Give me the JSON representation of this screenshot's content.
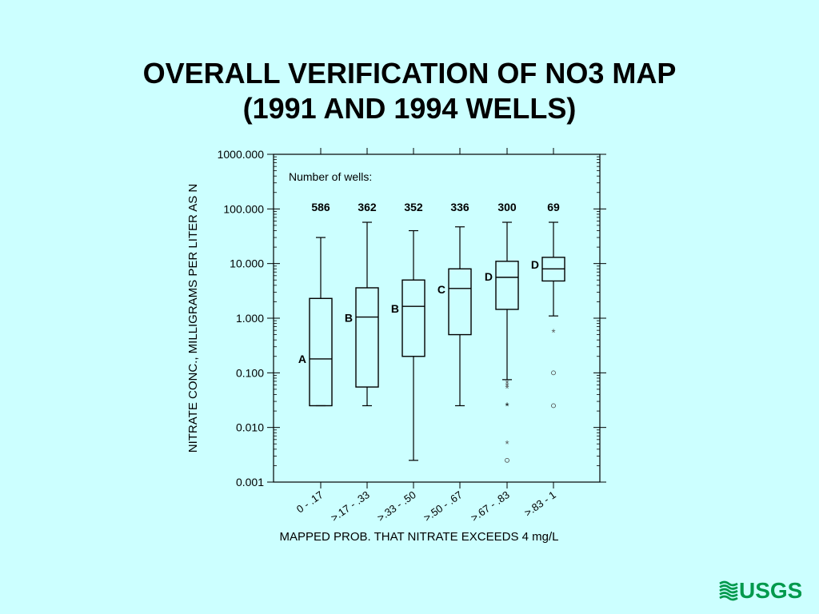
{
  "slide": {
    "title_line1": "OVERALL VERIFICATION OF NO3 MAP",
    "title_line2": "(1991 AND 1994 WELLS)",
    "logo_text": "USGS",
    "logo_color": "#00994c"
  },
  "chart_data": {
    "type": "box",
    "xlabel": "MAPPED PROB. THAT NITRATE EXCEEDS 4 mg/L",
    "ylabel": "NITRATE CONC., MILLIGRAMS PER LITER AS N",
    "yscale": "log",
    "ylim": [
      0.001,
      1000
    ],
    "yticks": [
      "0.001",
      "0.010",
      "0.100",
      "1.000",
      "10.000",
      "100.000",
      "1000.000"
    ],
    "annotation": "Number of wells:",
    "categories": [
      "0 - .17",
      ">.17 - .33",
      ">.33 - .50",
      ">.50 - .67",
      ">.67 - .83",
      ">.83 - 1"
    ],
    "counts": [
      "586",
      "362",
      "352",
      "336",
      "300",
      "69"
    ],
    "groups": [
      "A",
      "B",
      "B",
      "C",
      "D",
      "D"
    ],
    "boxes": [
      {
        "whisker_low": 0.025,
        "q1": 0.025,
        "median": 0.18,
        "q3": 2.3,
        "whisker_high": 30
      },
      {
        "whisker_low": 0.025,
        "q1": 0.055,
        "median": 1.05,
        "q3": 3.6,
        "whisker_high": 57
      },
      {
        "whisker_low": 0.0025,
        "q1": 0.2,
        "median": 1.65,
        "q3": 5.0,
        "whisker_high": 40
      },
      {
        "whisker_low": 0.025,
        "q1": 0.5,
        "median": 3.5,
        "q3": 8.0,
        "whisker_high": 47
      },
      {
        "whisker_low": 0.075,
        "q1": 1.45,
        "median": 5.6,
        "q3": 11.0,
        "whisker_high": 57
      },
      {
        "whisker_low": 1.1,
        "q1": 4.8,
        "median": 8.0,
        "q3": 13.0,
        "whisker_high": 57
      }
    ],
    "outliers": [
      {
        "category": 4,
        "value": 0.065,
        "symbol": "*"
      },
      {
        "category": 4,
        "value": 0.058,
        "symbol": "*"
      },
      {
        "category": 4,
        "value": 0.052,
        "symbol": "*"
      },
      {
        "category": 4,
        "value": 0.025,
        "symbol": "*"
      },
      {
        "category": 4,
        "value": 0.005,
        "symbol": "*"
      },
      {
        "category": 4,
        "value": 0.0025,
        "symbol": "o"
      },
      {
        "category": 5,
        "value": 0.55,
        "symbol": "*"
      },
      {
        "category": 5,
        "value": 0.1,
        "symbol": "o"
      },
      {
        "category": 5,
        "value": 0.025,
        "symbol": "o"
      }
    ],
    "grid": false
  }
}
